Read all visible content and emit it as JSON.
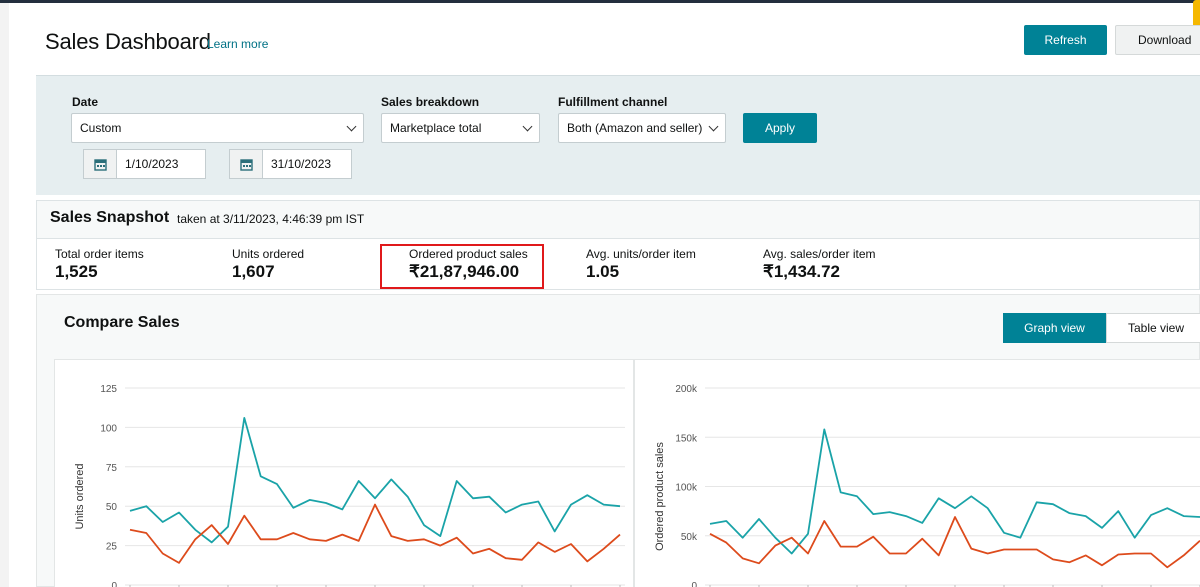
{
  "header": {
    "title": "Sales Dashboard",
    "learn_more": "Learn more",
    "refresh_label": "Refresh",
    "download_label": "Download"
  },
  "filters": {
    "date_label": "Date",
    "date_value": "Custom",
    "start_date": "1/10/2023",
    "end_date": "31/10/2023",
    "breakdown_label": "Sales breakdown",
    "breakdown_value": "Marketplace total",
    "fulfillment_label": "Fulfillment channel",
    "fulfillment_value": "Both (Amazon and seller)",
    "apply_label": "Apply"
  },
  "snapshot": {
    "title": "Sales Snapshot",
    "taken_at": "taken at 3/11/2023, 4:46:39 pm IST",
    "metrics": [
      {
        "label": "Total order items",
        "value": "1,525"
      },
      {
        "label": "Units ordered",
        "value": "1,607"
      },
      {
        "label": "Ordered product sales",
        "value": "₹21,87,946.00"
      },
      {
        "label": "Avg. units/order item",
        "value": "1.05"
      },
      {
        "label": "Avg. sales/order item",
        "value": "₹1,434.72"
      }
    ]
  },
  "compare": {
    "title": "Compare Sales",
    "graph_view": "Graph view",
    "table_view": "Table view"
  },
  "colors": {
    "teal": "#1aa3a8",
    "orange": "#dd4b1c",
    "accent": "#008296",
    "highlight": "#e0191b"
  },
  "chart_data": [
    {
      "type": "line",
      "ylabel": "Units ordered",
      "xlabel": "",
      "yticks": [
        "0",
        "25",
        "50",
        "75",
        "100",
        "125"
      ],
      "ylim": [
        0,
        125
      ],
      "grid": true,
      "series": [
        {
          "color": "#1aa3a8",
          "values": [
            47,
            50,
            40,
            46,
            35,
            27,
            37,
            106,
            69,
            64,
            49,
            54,
            52,
            48,
            66,
            55,
            67,
            56,
            38,
            31,
            66,
            55,
            56,
            46,
            51,
            53,
            34,
            51,
            57,
            51,
            50
          ]
        },
        {
          "color": "#dd4b1c",
          "values": [
            35,
            33,
            20,
            14,
            29,
            38,
            26,
            44,
            29,
            29,
            33,
            29,
            28,
            32,
            28,
            51,
            31,
            28,
            29,
            25,
            30,
            20,
            23,
            17,
            16,
            27,
            21,
            26,
            15,
            23,
            32
          ]
        }
      ]
    },
    {
      "type": "line",
      "ylabel": "Ordered product sales",
      "xlabel": "",
      "yticks": [
        "0",
        "50k",
        "100k",
        "150k",
        "200k"
      ],
      "ylim": [
        0,
        200000
      ],
      "grid": true,
      "series": [
        {
          "color": "#1aa3a8",
          "values": [
            62000,
            65000,
            48000,
            67000,
            48000,
            32000,
            52000,
            158000,
            94000,
            90000,
            72000,
            74000,
            70000,
            63000,
            88000,
            78000,
            90000,
            78000,
            53000,
            48000,
            84000,
            82000,
            73000,
            70000,
            58000,
            75000,
            48000,
            71000,
            78000,
            70000,
            69000
          ]
        },
        {
          "color": "#dd4b1c",
          "values": [
            52000,
            43000,
            27000,
            22000,
            40000,
            48000,
            32000,
            65000,
            39000,
            39000,
            49000,
            32000,
            32000,
            47000,
            30000,
            69000,
            37000,
            32000,
            36000,
            36000,
            36000,
            26000,
            23000,
            30000,
            20000,
            31000,
            32000,
            32000,
            18000,
            30000,
            45000
          ]
        }
      ]
    }
  ]
}
